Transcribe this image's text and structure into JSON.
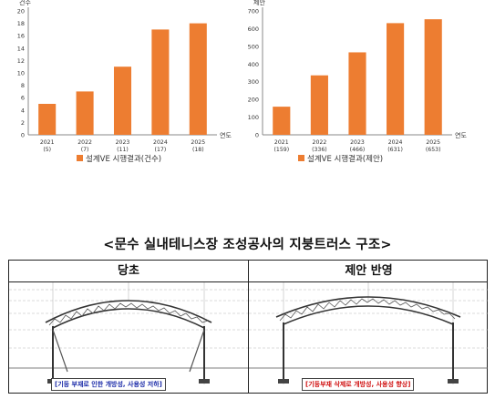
{
  "chart_data": [
    {
      "type": "bar",
      "ylabel": "건수",
      "xlabel": "연도",
      "categories": [
        "2021",
        "2022",
        "2023",
        "2024",
        "2025"
      ],
      "category_sublabels": [
        "(5)",
        "(7)",
        "(11)",
        "(17)",
        "(18)"
      ],
      "series": [
        {
          "name": "설계VE 시행결과(건수)",
          "values": [
            5,
            7,
            11,
            17,
            18
          ]
        }
      ],
      "ylim": [
        0,
        20
      ],
      "yticks": [
        "0",
        "2",
        "4",
        "6",
        "8",
        "10",
        "12",
        "14",
        "16",
        "18",
        "20"
      ],
      "grid": false,
      "legend": "bottom",
      "bar_color": "#ED7D31"
    },
    {
      "type": "bar",
      "ylabel": "제안",
      "xlabel": "연도",
      "categories": [
        "2021",
        "2022",
        "2023",
        "2024",
        "2025"
      ],
      "category_sublabels": [
        "(159)",
        "(336)",
        "(466)",
        "(631)",
        "(653)"
      ],
      "series": [
        {
          "name": "설계VE 시행결과(제안)",
          "values": [
            159,
            336,
            466,
            631,
            653
          ]
        }
      ],
      "ylim": [
        0,
        700
      ],
      "yticks": [
        "0",
        "100",
        "200",
        "300",
        "400",
        "500",
        "600",
        "700"
      ],
      "grid": false,
      "legend": "bottom",
      "bar_color": "#ED7D31"
    }
  ],
  "caption": "<문수 실내테니스장 조성공사의 지붕트러스 구조>",
  "table": {
    "left_header": "당초",
    "right_header": "제안 반영",
    "left_note": "[기둥 부재로 인한 개방성, 사용성 저하]",
    "right_note": "[기둥부재 삭제로 개방성, 사용성 향상]"
  }
}
